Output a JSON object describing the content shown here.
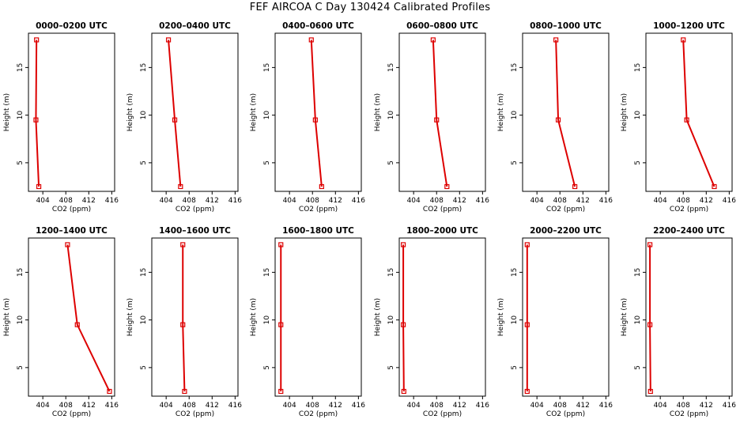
{
  "title": "FEF AIRCOA C  Day 130424  Calibrated Profiles",
  "chart_data": {
    "type": "line",
    "layout": "2 rows x 6 panels",
    "xlabel": "CO2 (ppm)",
    "ylabel": "Height (m)",
    "xlim": [
      401.5,
      416.5
    ],
    "ylim": [
      2,
      18.6
    ],
    "xticks": [
      404,
      408,
      412,
      416
    ],
    "yticks": [
      5,
      10,
      15
    ],
    "heights": [
      17.9,
      9.5,
      2.5
    ],
    "line_color": "#dd0000",
    "panels": [
      {
        "title": "0000–0200 UTC",
        "co2": [
          402.9,
          402.8,
          403.3
        ]
      },
      {
        "title": "0200–0400 UTC",
        "co2": [
          404.4,
          405.5,
          406.5
        ]
      },
      {
        "title": "0400–0600 UTC",
        "co2": [
          407.8,
          408.5,
          409.6
        ]
      },
      {
        "title": "0600–0800 UTC",
        "co2": [
          407.4,
          408.0,
          409.8
        ]
      },
      {
        "title": "0800–1000 UTC",
        "co2": [
          407.3,
          407.7,
          410.6
        ]
      },
      {
        "title": "1000–1200 UTC",
        "co2": [
          408.0,
          408.6,
          413.4
        ]
      },
      {
        "title": "1200–1400 UTC",
        "co2": [
          408.3,
          410.0,
          415.6
        ]
      },
      {
        "title": "1400–1600 UTC",
        "co2": [
          406.9,
          406.9,
          407.2
        ]
      },
      {
        "title": "1600–1800 UTC",
        "co2": [
          402.5,
          402.5,
          402.5
        ]
      },
      {
        "title": "1800–2000 UTC",
        "co2": [
          402.2,
          402.2,
          402.3
        ]
      },
      {
        "title": "2000–2200 UTC",
        "co2": [
          402.3,
          402.3,
          402.3
        ]
      },
      {
        "title": "2200–2400 UTC",
        "co2": [
          402.2,
          402.2,
          402.3
        ]
      }
    ]
  }
}
